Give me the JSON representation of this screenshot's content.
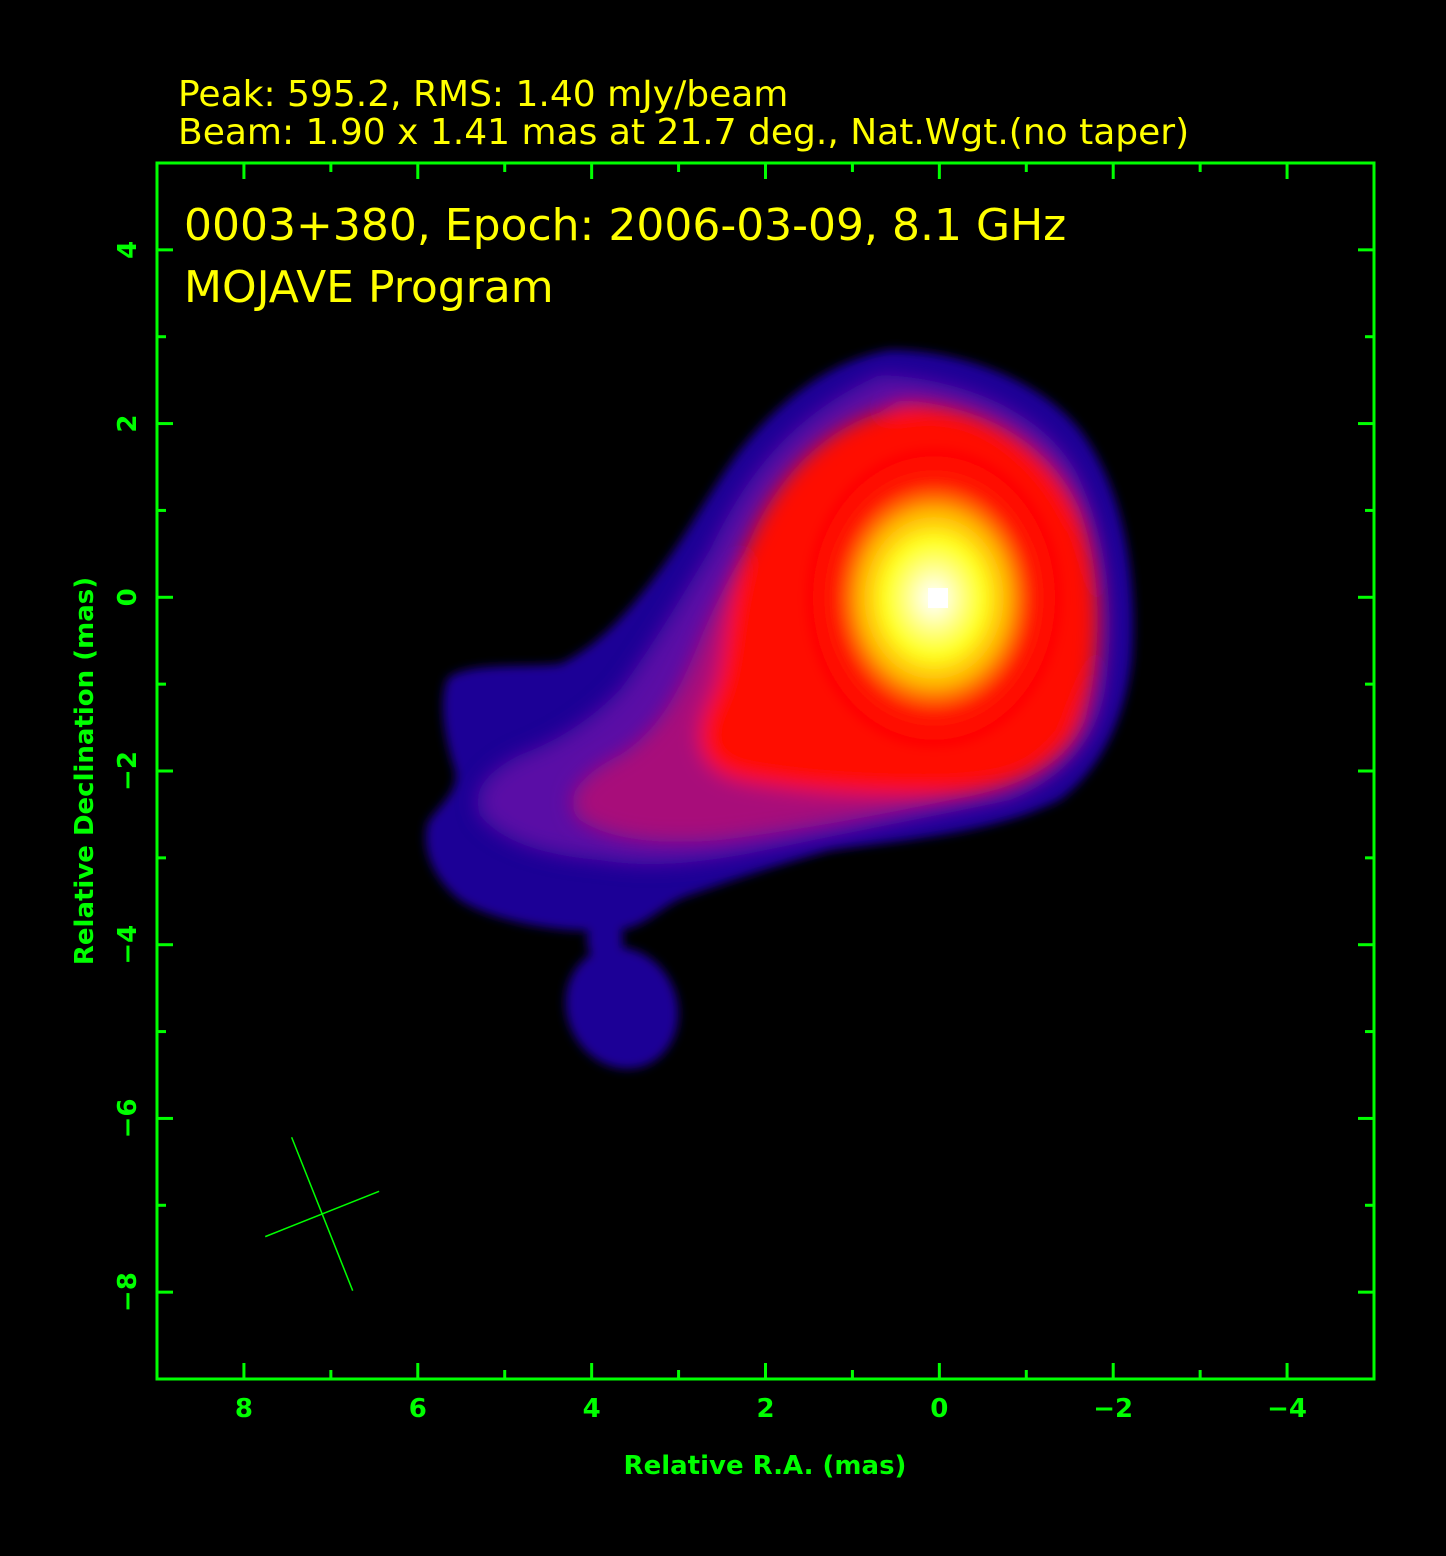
{
  "header": {
    "line1": "Peak: 595.2, RMS: 1.40 mJy/beam",
    "line2": "Beam: 1.90 x 1.41 mas at 21.7 deg., Nat.Wgt.(no taper)"
  },
  "colors": {
    "background": "#000000",
    "axes": "#00ff00",
    "text": "#ffff00"
  },
  "chart_data": {
    "type": "heatmap",
    "title": "0003+380, Epoch: 2006-03-09, 8.1 GHz",
    "subtitle": "MOJAVE Program",
    "xlabel": "Relative R.A. (mas)",
    "ylabel": "Relative Declination (mas)",
    "xlim": [
      9,
      -5
    ],
    "ylim": [
      -9,
      5
    ],
    "xticks": [
      8,
      6,
      4,
      2,
      0,
      -2,
      -4
    ],
    "xtick_labels": [
      "8",
      "6",
      "4",
      "2",
      "0",
      "−2",
      "−4"
    ],
    "yticks": [
      4,
      2,
      0,
      -2,
      -4,
      -6,
      -8
    ],
    "ytick_labels": [
      "4",
      "2",
      "0",
      "−2",
      "−4",
      "−6",
      "−8"
    ],
    "grid": false,
    "colormap": "black-blue-purple-red-yellow-white",
    "peak_mjy_per_beam": 595.2,
    "rms_mjy_per_beam": 1.4,
    "peak_position": [
      0,
      0
    ],
    "beam": {
      "major_mas": 1.9,
      "minor_mas": 1.41,
      "pa_deg": 21.7,
      "center": [
        7.1,
        -7.1
      ]
    }
  }
}
